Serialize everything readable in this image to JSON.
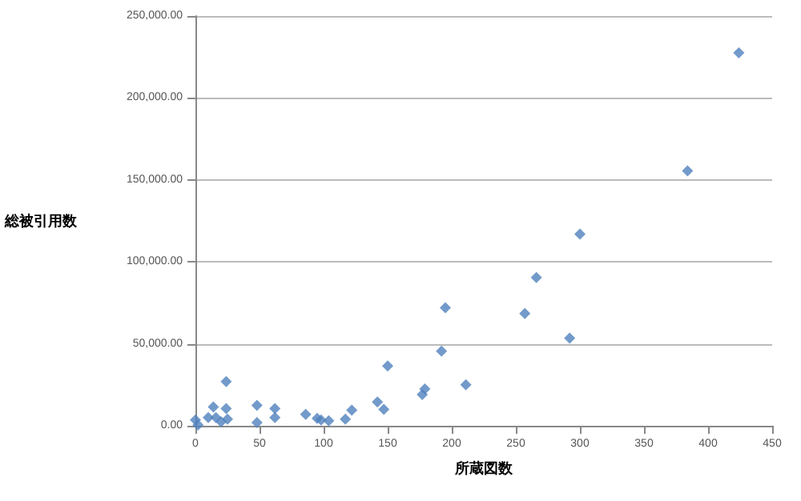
{
  "chart_data": {
    "type": "scatter",
    "xlabel": "所蔵図数",
    "ylabel": "総被引用数",
    "marker": "diamond",
    "grid": "y",
    "xlim": [
      0,
      450
    ],
    "xticks": [
      0,
      50,
      100,
      150,
      200,
      250,
      300,
      350,
      400,
      450
    ],
    "ylim": [
      0,
      250000
    ],
    "yticks": [
      {
        "value": 0,
        "label": "0.00"
      },
      {
        "value": 50000,
        "label": "50,000.00"
      },
      {
        "value": 100000,
        "label": "100,000.00"
      },
      {
        "value": 150000,
        "label": "150,000.00"
      },
      {
        "value": 200000,
        "label": "200,000.00"
      },
      {
        "value": 250000,
        "label": "250,000.00"
      }
    ],
    "series": [
      {
        "color": "#4f81bd",
        "x": [
          0,
          2,
          10,
          14,
          16,
          20,
          24,
          24,
          25,
          48,
          48,
          62,
          62,
          86,
          95,
          98,
          104,
          117,
          122,
          142,
          147,
          150,
          177,
          179,
          192,
          195,
          211,
          257,
          266,
          292,
          300,
          384,
          424
        ],
        "values": [
          3500,
          500,
          5000,
          11500,
          5000,
          2500,
          27000,
          10500,
          4000,
          12500,
          2000,
          10500,
          5000,
          7000,
          4500,
          3500,
          3000,
          4000,
          9500,
          14500,
          10000,
          36500,
          19000,
          22500,
          45500,
          72000,
          25000,
          68500,
          90500,
          53500,
          117000,
          155500,
          227500
        ]
      }
    ]
  }
}
